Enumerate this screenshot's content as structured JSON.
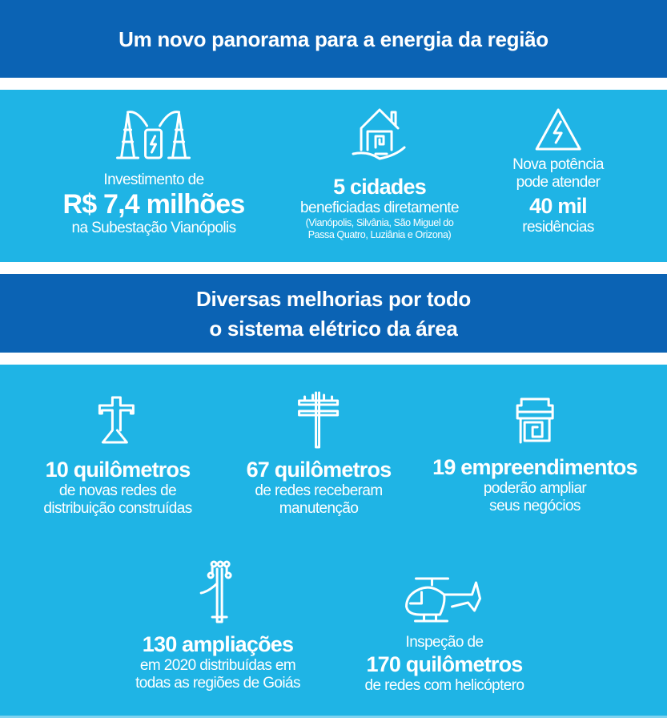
{
  "header1": {
    "title": "Um novo panorama para a energia da região"
  },
  "section1": {
    "investment": {
      "icon": "substation-icon",
      "line1": "Investimento de",
      "value": "R$ 7,4 milhões",
      "line2": "na Subestação Vianópolis"
    },
    "cities": {
      "icon": "house-hand-icon",
      "value": "5 cidades",
      "line1": "beneficiadas diretamente",
      "note1": "(Vianópolis, Silvânia, São Miguel do",
      "note2": "Passa Quatro, Luziânia e Orizona)"
    },
    "power": {
      "icon": "high-voltage-warning-icon",
      "line1": "Nova potência",
      "line2": "pode atender",
      "value": "40 mil",
      "line3": "residências"
    }
  },
  "header2": {
    "line1": "Diversas melhorias por todo",
    "line2": "o sistema elétrico da área"
  },
  "section2": {
    "items": [
      {
        "icon": "power-tower-icon",
        "value": "10 quilômetros",
        "line1": "de novas redes de",
        "line2": "distribuição construídas"
      },
      {
        "icon": "utility-pole-icon",
        "value": "67 quilômetros",
        "line1": "de redes receberam",
        "line2": "manutenção"
      },
      {
        "icon": "business-building-icon",
        "value": "19 empreendimentos",
        "line1": "poderão ampliar",
        "line2": "seus negócios"
      },
      {
        "icon": "pole-connection-icon",
        "value": "130 ampliações",
        "line1": "em 2020 distribuídas em",
        "line2": "todas as regiões de Goiás"
      },
      {
        "icon": "helicopter-icon",
        "pre": "Inspeção de",
        "value": "170 quilômetros",
        "line1": "de redes com helicóptero"
      }
    ]
  },
  "colors": {
    "dark_blue": "#0b63b4",
    "light_blue": "#1fb4e5"
  }
}
